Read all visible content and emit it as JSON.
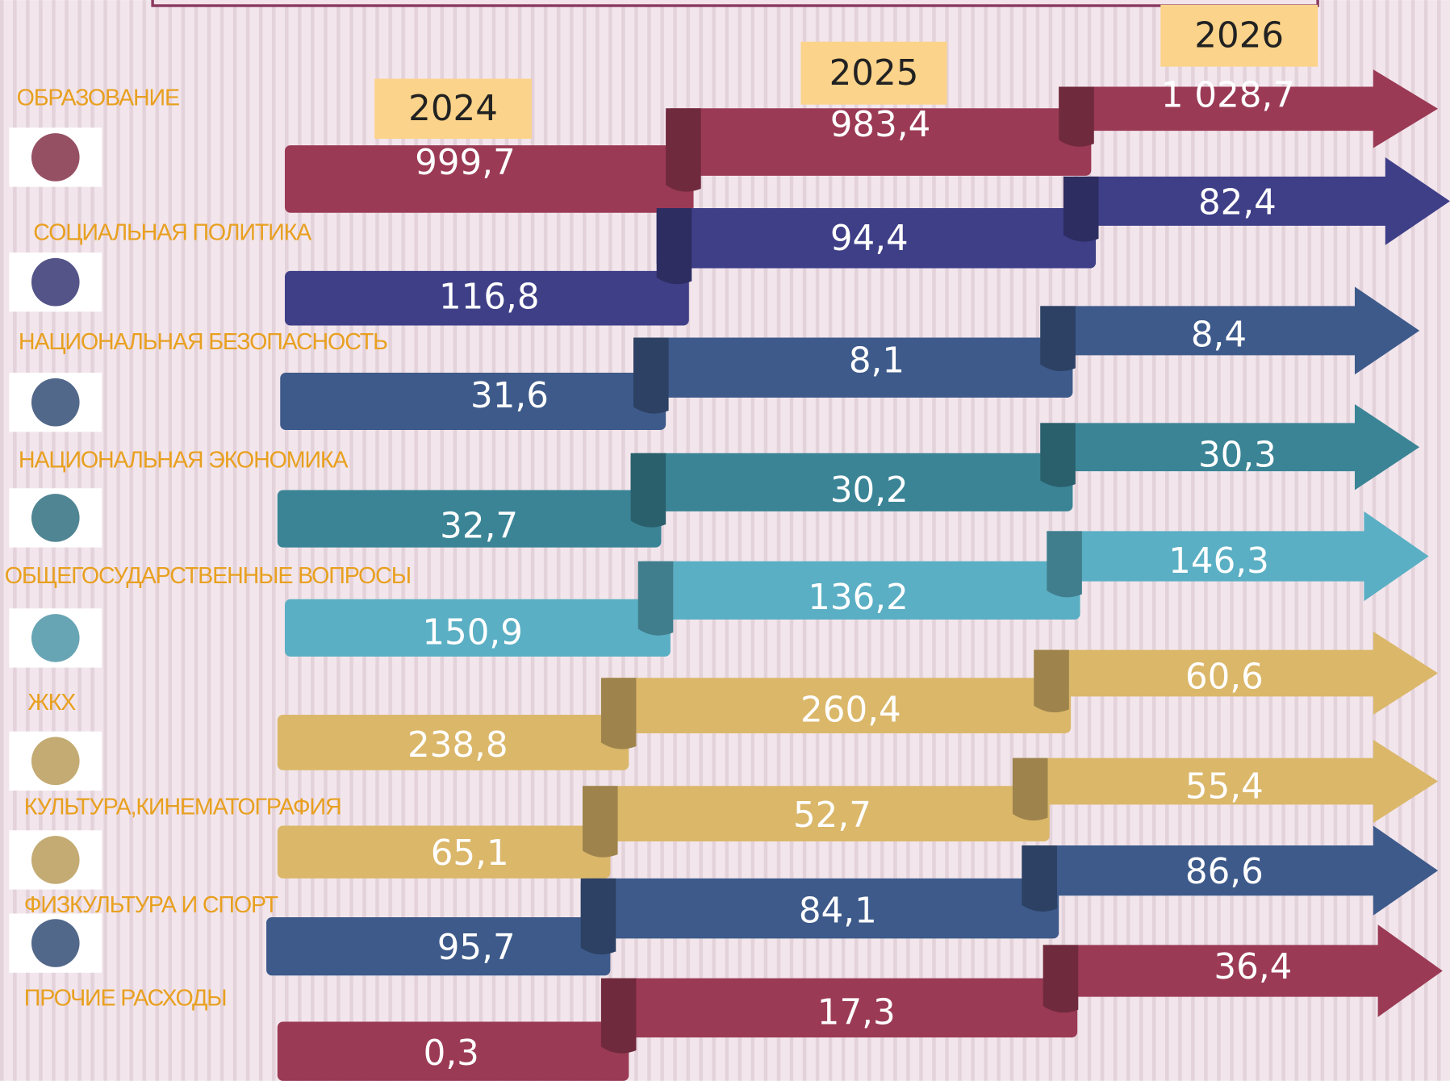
{
  "years": [
    "2024",
    "2025",
    "2026"
  ],
  "rows": [
    {
      "label": "ОБРАЗОВАНИЕ",
      "values": [
        "999,7",
        "983,4",
        "1 028,7"
      ]
    },
    {
      "label": "СОЦИАЛЬНАЯ ПОЛИТИКА",
      "values": [
        "116,8",
        "94,4",
        "82,4"
      ]
    },
    {
      "label": "НАЦИОНАЛЬНАЯ БЕЗОПАСНОСТЬ",
      "values": [
        "31,6",
        "8,1",
        "8,4"
      ]
    },
    {
      "label": "НАЦИОНАЛЬНАЯ ЭКОНОМИКА",
      "values": [
        "32,7",
        "30,2",
        "30,3"
      ]
    },
    {
      "label": "ОБЩЕГОСУДАРСТВЕННЫЕ ВОПРОСЫ",
      "values": [
        "150,9",
        "136,2",
        "146,3"
      ]
    },
    {
      "label": "ЖКХ",
      "values": [
        "238,8",
        "260,4",
        "60,6"
      ]
    },
    {
      "label": "КУЛЬТУРА,КИНЕМАТОГРАФИЯ",
      "values": [
        "65,1",
        "52,7",
        "55,4"
      ]
    },
    {
      "label": "ФИЗКУЛЬТУРА И СПОРТ",
      "values": [
        "95,7",
        "84,1",
        "86,6"
      ]
    },
    {
      "label": "ПРОЧИЕ РАСХОДЫ",
      "values": [
        "0,3",
        "17,3",
        "36,4"
      ]
    }
  ]
}
